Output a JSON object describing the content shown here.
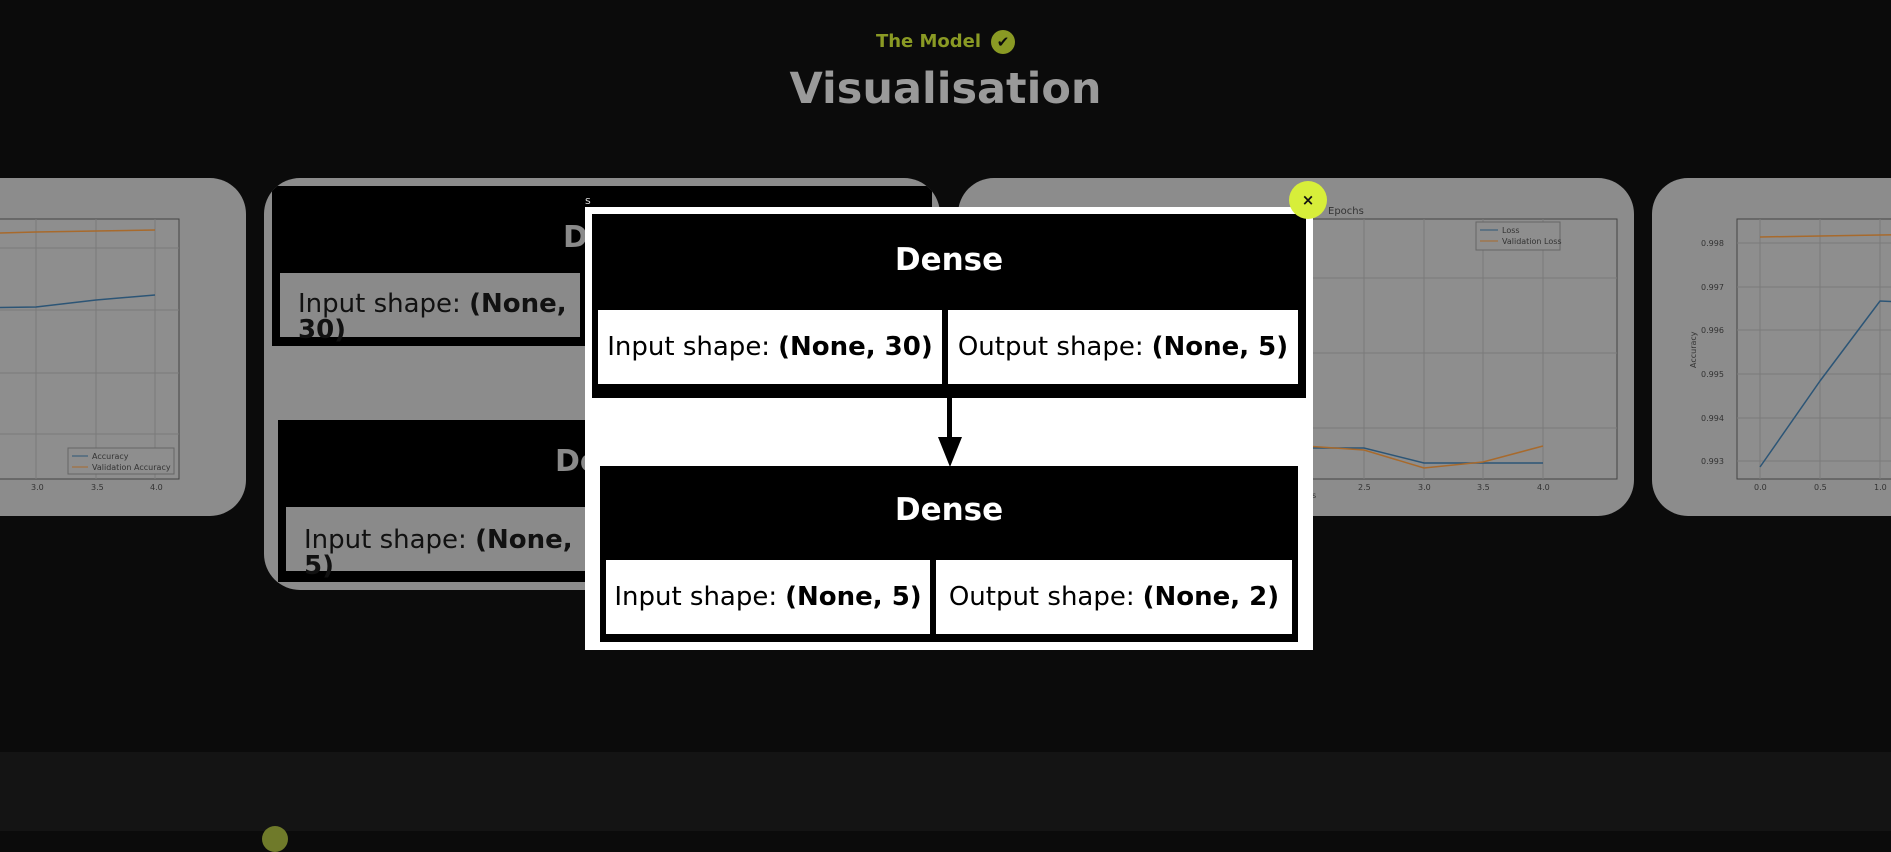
{
  "section": {
    "eyebrow": "The Model",
    "title": "Visualisation"
  },
  "card_left": {
    "legend": [
      "Accuracy",
      "Validation Accuracy"
    ],
    "x_ticks": [
      "3.0",
      "3.5",
      "4.0"
    ],
    "colors": {
      "accuracy": "#1f77b4",
      "validation": "#ff7f0e"
    }
  },
  "card_middle": {
    "node1": {
      "title": "De",
      "input_label": "Input shape:",
      "input_value": "(None, 30)"
    },
    "node2": {
      "title": "De",
      "input_label": "Input shape:",
      "input_value": "(None, 5)"
    }
  },
  "card_right": {
    "title": "Epochs",
    "legend": [
      "Loss",
      "Validation Loss"
    ],
    "x_ticks": [
      "2.5",
      "3.0",
      "3.5",
      "4.0"
    ],
    "x_label": "s"
  },
  "card_far_right": {
    "y_label": "Accuracy",
    "y_ticks": [
      "0.998",
      "0.997",
      "0.996",
      "0.995",
      "0.994",
      "0.993"
    ],
    "x_ticks": [
      "0.0",
      "0.5",
      "1.0"
    ]
  },
  "modal": {
    "caption": "s",
    "close_label": "×",
    "nodes": [
      {
        "title": "Dense",
        "input_label": "Input shape:",
        "input_value": "(None, 30)",
        "output_label": "Output shape:",
        "output_value": "(None, 5)"
      },
      {
        "title": "Dense",
        "input_label": "Input shape:",
        "input_value": "(None, 5)",
        "output_label": "Output shape:",
        "output_value": "(None, 2)"
      }
    ]
  }
}
